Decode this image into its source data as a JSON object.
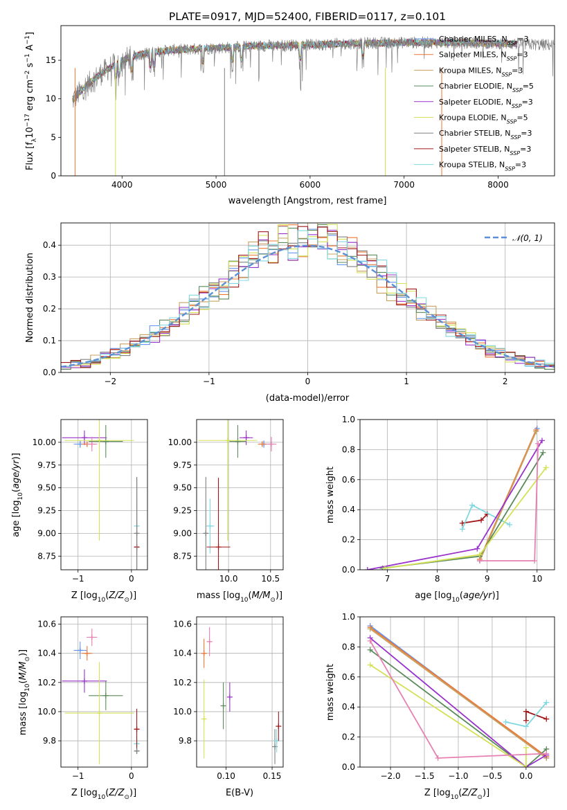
{
  "title": "PLATE=0917, MJD=52400, FIBERID=0117, z=0.101",
  "colors": {
    "chabrier_miles": "#6495ed",
    "salpeter_miles": "#ee7733",
    "kroupa_miles": "#c8a060",
    "chabrier_elodie": "#5a8a5a",
    "salpeter_elodie": "#9932cc",
    "kroupa_elodie": "#d4e157",
    "chabrier_stelib": "#808080",
    "salpeter_stelib": "#a01818",
    "kroupa_stelib": "#7fd8e0",
    "pink": "#e680b3",
    "gaussian": "#5b8fd6"
  },
  "chart_data": [
    {
      "type": "line",
      "id": "spectrum",
      "title": "PLATE=0917, MJD=52400, FIBERID=0117, z=0.101",
      "xlabel": "wavelength [Angstrom, rest frame]",
      "ylabel": "Flux [f_λ 10^-17 erg cm^-2 s^-1 A^-1]",
      "xlim": [
        3350,
        8600
      ],
      "ylim": [
        0,
        19.5
      ],
      "xticks": [
        4000,
        5000,
        6000,
        7000,
        8000
      ],
      "yticks": [
        0,
        5,
        10,
        15
      ],
      "legend": "right",
      "series": [
        {
          "name": "Chabrier MILES, N_SSP=3",
          "key": "chabrier_miles"
        },
        {
          "name": "Salpeter MILES, N_SSP=3",
          "key": "salpeter_miles"
        },
        {
          "name": "Kroupa MILES, N_SSP=3",
          "key": "kroupa_miles"
        },
        {
          "name": "Chabrier ELODIE, N_SSP=5",
          "key": "chabrier_elodie"
        },
        {
          "name": "Salpeter ELODIE, N_SSP=3",
          "key": "salpeter_elodie"
        },
        {
          "name": "Kroupa ELODIE, N_SSP=5",
          "key": "kroupa_elodie"
        },
        {
          "name": "Chabrier STELIB, N_SSP=3",
          "key": "chabrier_stelib"
        },
        {
          "name": "Salpeter STELIB, N_SSP=3",
          "key": "salpeter_stelib"
        },
        {
          "name": "Kroupa STELIB, N_SSP=3",
          "key": "kroupa_stelib"
        }
      ],
      "continuum": {
        "x": [
          3450,
          3600,
          3800,
          4000,
          4200,
          4500,
          5000,
          5500,
          6000,
          6500,
          7000,
          7500,
          8000,
          8500
        ],
        "y": [
          9.5,
          11.5,
          13.5,
          15.0,
          15.8,
          16.3,
          16.6,
          16.9,
          17.0,
          17.2,
          17.3,
          17.3,
          17.2,
          17.0
        ]
      }
    },
    {
      "type": "bar",
      "id": "residuals",
      "xlabel": "(data-model)/error",
      "ylabel": "Normed distribution",
      "xlim": [
        -2.5,
        2.5
      ],
      "ylim": [
        0,
        0.47
      ],
      "xticks": [
        -2,
        -1,
        0,
        1,
        2
      ],
      "yticks": [
        0.0,
        0.1,
        0.2,
        0.3,
        0.4
      ],
      "legend_label": "𝒩(0, 1)",
      "legend": "top-right",
      "grid": true
    },
    {
      "type": "scatter",
      "id": "age_vs_Z",
      "xlabel": "Z [log10(Z/Z☉)]",
      "ylabel": "age  [log10(age/yr)]",
      "xlim": [
        -1.32,
        0.3
      ],
      "ylim": [
        8.6,
        10.25
      ],
      "xticks": [
        -1,
        0
      ],
      "yticks": [
        8.75,
        9.0,
        9.25,
        9.5,
        9.75,
        10.0
      ],
      "grid": true,
      "points": [
        {
          "key": "salpeter_elodie",
          "x": -0.88,
          "y": 10.05,
          "xerr": 0.42,
          "yerr": 0.08
        },
        {
          "key": "chabrier_miles",
          "x": -0.96,
          "y": 9.98,
          "xerr": 0.12,
          "yerr": 0.04
        },
        {
          "key": "salpeter_miles",
          "x": -0.83,
          "y": 9.98,
          "xerr": 0.1,
          "yerr": 0.03
        },
        {
          "key": "pink",
          "x": -0.74,
          "y": 9.98,
          "xerr": 0.1,
          "yerr": 0.08
        },
        {
          "key": "chabrier_elodie",
          "x": -0.48,
          "y": 10.01,
          "xerr": 0.32,
          "yerr": 0.18
        },
        {
          "key": "kroupa_elodie",
          "x": -0.6,
          "y": 10.02,
          "xerr": 0.65,
          "yerr": 1.1
        },
        {
          "key": "kroupa_stelib",
          "x": 0.1,
          "y": 9.08,
          "xerr": 0.05,
          "yerr": 0.3
        },
        {
          "key": "salpeter_stelib",
          "x": 0.1,
          "y": 8.85,
          "xerr": 0.05,
          "yerr": 0.76
        },
        {
          "key": "chabrier_stelib",
          "x": 0.1,
          "y": 9.0,
          "xerr": 0.02,
          "yerr": 0.62
        }
      ]
    },
    {
      "type": "scatter",
      "id": "age_vs_mass",
      "xlabel": "mass [log10(M/M☉)]",
      "ylabel": "",
      "xlim": [
        9.62,
        10.65
      ],
      "ylim": [
        8.6,
        10.25
      ],
      "xticks": [
        10.0,
        10.5
      ],
      "yticks": [
        8.75,
        9.0,
        9.25,
        9.5,
        9.75,
        10.0
      ],
      "grid": true,
      "points": [
        {
          "key": "salpeter_elodie",
          "x": 10.21,
          "y": 10.05,
          "xerr": 0.08,
          "yerr": 0.08
        },
        {
          "key": "chabrier_miles",
          "x": 10.42,
          "y": 9.98,
          "xerr": 0.06,
          "yerr": 0.04
        },
        {
          "key": "salpeter_miles",
          "x": 10.4,
          "y": 9.98,
          "xerr": 0.05,
          "yerr": 0.03
        },
        {
          "key": "pink",
          "x": 10.51,
          "y": 9.98,
          "xerr": 0.06,
          "yerr": 0.08
        },
        {
          "key": "chabrier_elodie",
          "x": 10.11,
          "y": 10.01,
          "xerr": 0.1,
          "yerr": 0.18
        },
        {
          "key": "kroupa_elodie",
          "x": 9.99,
          "y": 10.02,
          "xerr": 0.35,
          "yerr": 1.1
        },
        {
          "key": "kroupa_stelib",
          "x": 9.78,
          "y": 9.08,
          "xerr": 0.05,
          "yerr": 0.3
        },
        {
          "key": "salpeter_stelib",
          "x": 9.88,
          "y": 8.85,
          "xerr": 0.14,
          "yerr": 0.76
        },
        {
          "key": "chabrier_stelib",
          "x": 9.73,
          "y": 9.0,
          "xerr": 0.02,
          "yerr": 0.62
        }
      ]
    },
    {
      "type": "line",
      "id": "weight_vs_age",
      "xlabel": "age  [log10(age/yr)]",
      "ylabel": "mass weight",
      "xlim": [
        6.45,
        10.35
      ],
      "ylim": [
        0,
        1.0
      ],
      "xticks": [
        7,
        8,
        9,
        10
      ],
      "yticks": [
        0.0,
        0.2,
        0.4,
        0.6,
        0.8,
        1.0
      ],
      "grid": true,
      "series": [
        {
          "key": "salpeter_stelib",
          "x": [
            8.5,
            8.88,
            9.0
          ],
          "y": [
            0.31,
            0.33,
            0.37
          ]
        },
        {
          "key": "kroupa_stelib",
          "x": [
            8.5,
            8.7,
            9.45
          ],
          "y": [
            0.27,
            0.43,
            0.3
          ]
        },
        {
          "key": "chabrier_miles",
          "x": [
            8.85,
            10.0
          ],
          "y": [
            0.06,
            0.94
          ]
        },
        {
          "key": "salpeter_miles",
          "x": [
            8.85,
            9.98
          ],
          "y": [
            0.07,
            0.93
          ]
        },
        {
          "key": "kroupa_miles",
          "x": [
            8.85,
            9.98
          ],
          "y": [
            0.06,
            0.92
          ]
        },
        {
          "key": "chabrier_elodie",
          "x": [
            6.9,
            8.85,
            10.12
          ],
          "y": [
            0.01,
            0.09,
            0.78
          ]
        },
        {
          "key": "salpeter_elodie",
          "x": [
            6.6,
            8.8,
            10.1
          ],
          "y": [
            0.0,
            0.14,
            0.86
          ]
        },
        {
          "key": "kroupa_elodie",
          "x": [
            6.95,
            8.85,
            10.18
          ],
          "y": [
            0.01,
            0.1,
            0.68
          ]
        },
        {
          "key": "pink",
          "x": [
            8.85,
            9.95,
            10.02
          ],
          "y": [
            0.06,
            0.06,
            0.84
          ]
        }
      ]
    },
    {
      "type": "scatter",
      "id": "mass_vs_Z",
      "xlabel": "Z [log10(Z/Z☉)]",
      "ylabel": "mass [log10(M/M☉)]",
      "xlim": [
        -1.32,
        0.3
      ],
      "ylim": [
        9.62,
        10.65
      ],
      "xticks": [
        -1,
        0
      ],
      "yticks": [
        9.8,
        10.0,
        10.2,
        10.4,
        10.6
      ],
      "grid": true,
      "points": [
        {
          "key": "salpeter_elodie",
          "x": -0.88,
          "y": 10.21,
          "xerr": 0.42,
          "yerr": 0.08
        },
        {
          "key": "chabrier_miles",
          "x": -0.96,
          "y": 10.42,
          "xerr": 0.12,
          "yerr": 0.06
        },
        {
          "key": "salpeter_miles",
          "x": -0.83,
          "y": 10.4,
          "xerr": 0.1,
          "yerr": 0.05
        },
        {
          "key": "pink",
          "x": -0.74,
          "y": 10.51,
          "xerr": 0.1,
          "yerr": 0.06
        },
        {
          "key": "chabrier_elodie",
          "x": -0.48,
          "y": 10.11,
          "xerr": 0.32,
          "yerr": 0.1
        },
        {
          "key": "kroupa_elodie",
          "x": -0.6,
          "y": 9.99,
          "xerr": 0.65,
          "yerr": 0.35
        },
        {
          "key": "kroupa_stelib",
          "x": 0.1,
          "y": 9.78,
          "xerr": 0.05,
          "yerr": 0.05
        },
        {
          "key": "salpeter_stelib",
          "x": 0.1,
          "y": 9.88,
          "xerr": 0.05,
          "yerr": 0.14
        },
        {
          "key": "chabrier_stelib",
          "x": 0.1,
          "y": 9.73,
          "xerr": 0.05,
          "yerr": 0.02
        }
      ]
    },
    {
      "type": "scatter",
      "id": "mass_vs_ebv",
      "xlabel": "E(B-V)",
      "ylabel": "",
      "xlim": [
        0.068,
        0.162
      ],
      "ylim": [
        9.62,
        10.65
      ],
      "xticks": [
        0.1,
        0.15
      ],
      "yticks": [
        9.8,
        10.0,
        10.2,
        10.4,
        10.6
      ],
      "grid": true,
      "points": [
        {
          "key": "kroupa_elodie",
          "x": 0.076,
          "y": 9.95,
          "yerr": 0.27
        },
        {
          "key": "salpeter_miles",
          "x": 0.076,
          "y": 10.4,
          "yerr": 0.1
        },
        {
          "key": "pink",
          "x": 0.082,
          "y": 10.48,
          "yerr": 0.1
        },
        {
          "key": "chabrier_elodie",
          "x": 0.097,
          "y": 10.04,
          "yerr": 0.16
        },
        {
          "key": "salpeter_elodie",
          "x": 0.104,
          "y": 10.1,
          "yerr": 0.1
        },
        {
          "key": "chabrier_stelib",
          "x": 0.153,
          "y": 9.76,
          "yerr": 0.12
        },
        {
          "key": "kroupa_stelib",
          "x": 0.155,
          "y": 9.8,
          "yerr": 0.08
        },
        {
          "key": "salpeter_stelib",
          "x": 0.157,
          "y": 9.9,
          "yerr": 0.1
        }
      ]
    },
    {
      "type": "line",
      "id": "weight_vs_Z",
      "xlabel": "Z [log10(Z/Z☉)]",
      "ylabel": "mass weight",
      "xlim": [
        -2.45,
        0.42
      ],
      "ylim": [
        0,
        1.0
      ],
      "xticks": [
        -2.0,
        -1.5,
        -1.0,
        -0.5,
        0.0
      ],
      "yticks": [
        0.0,
        0.2,
        0.4,
        0.6,
        0.8,
        1.0
      ],
      "grid": true,
      "series": [
        {
          "key": "salpeter_stelib",
          "x": [
            0.0,
            0.0,
            0.3
          ],
          "y": [
            0.31,
            0.37,
            0.32
          ]
        },
        {
          "key": "kroupa_stelib",
          "x": [
            -0.3,
            0.0,
            0.3
          ],
          "y": [
            0.3,
            0.27,
            0.43
          ]
        },
        {
          "key": "chabrier_miles",
          "x": [
            -2.3,
            0.3
          ],
          "y": [
            0.94,
            0.06
          ]
        },
        {
          "key": "salpeter_miles",
          "x": [
            -2.3,
            0.3
          ],
          "y": [
            0.93,
            0.07
          ]
        },
        {
          "key": "kroupa_miles",
          "x": [
            -2.3,
            0.3
          ],
          "y": [
            0.92,
            0.06
          ]
        },
        {
          "key": "chabrier_elodie",
          "x": [
            -2.3,
            0.0,
            0.3
          ],
          "y": [
            0.78,
            0.0,
            0.12
          ]
        },
        {
          "key": "salpeter_elodie",
          "x": [
            -2.3,
            0.0,
            0.3
          ],
          "y": [
            0.86,
            0.0,
            0.08
          ]
        },
        {
          "key": "kroupa_elodie",
          "x": [
            -2.3,
            0.0,
            0.0
          ],
          "y": [
            0.68,
            0.0,
            0.13
          ]
        },
        {
          "key": "pink",
          "x": [
            -2.3,
            -1.3,
            0.3
          ],
          "y": [
            0.84,
            0.06,
            0.09
          ]
        }
      ]
    }
  ]
}
